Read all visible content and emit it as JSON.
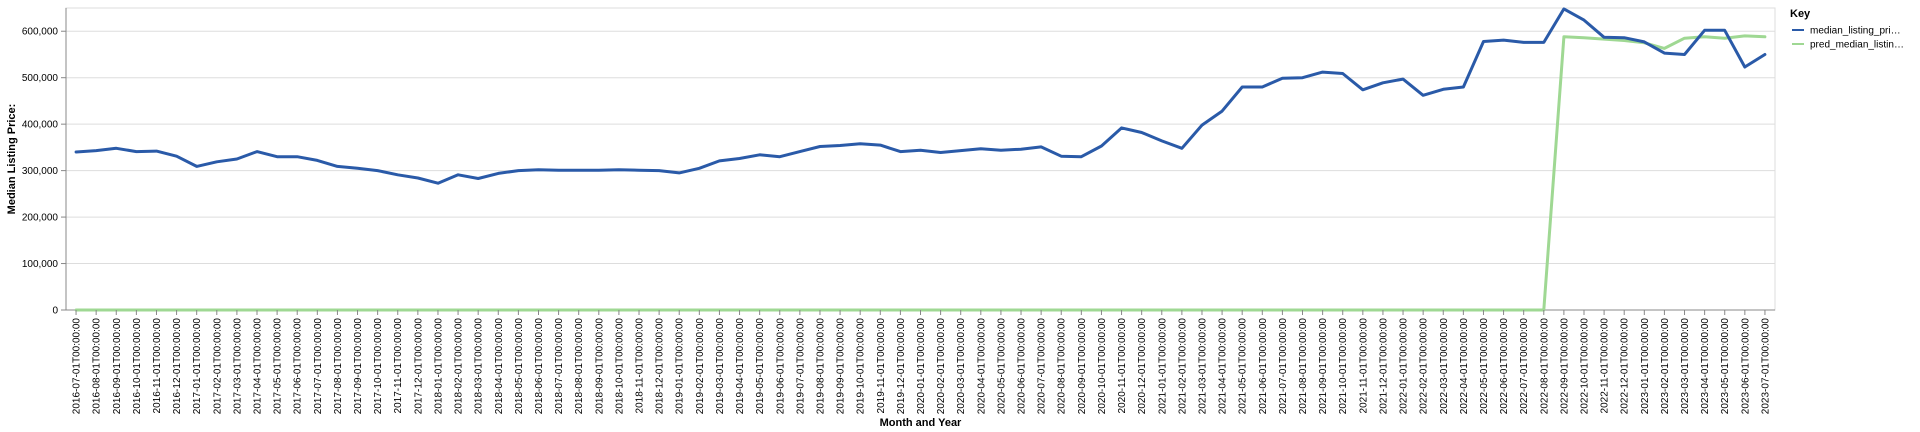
{
  "chart_data": {
    "type": "line",
    "xlabel": "Month and Year",
    "ylabel": "Median Listing Price:",
    "ylim": [
      0,
      650000
    ],
    "yticks": [
      0,
      100000,
      200000,
      300000,
      400000,
      500000,
      600000
    ],
    "ytick_labels": [
      "0",
      "100,000",
      "200,000",
      "300,000",
      "400,000",
      "500,000",
      "600,000"
    ],
    "grid": true,
    "legend": {
      "title": "Key",
      "position": "right",
      "entries": [
        "median_listing_pri…",
        "pred_median_listin…"
      ]
    },
    "x": [
      "2016-07-01T00:00:00",
      "2016-08-01T00:00:00",
      "2016-09-01T00:00:00",
      "2016-10-01T00:00:00",
      "2016-11-01T00:00:00",
      "2016-12-01T00:00:00",
      "2017-01-01T00:00:00",
      "2017-02-01T00:00:00",
      "2017-03-01T00:00:00",
      "2017-04-01T00:00:00",
      "2017-05-01T00:00:00",
      "2017-06-01T00:00:00",
      "2017-07-01T00:00:00",
      "2017-08-01T00:00:00",
      "2017-09-01T00:00:00",
      "2017-10-01T00:00:00",
      "2017-11-01T00:00:00",
      "2017-12-01T00:00:00",
      "2018-01-01T00:00:00",
      "2018-02-01T00:00:00",
      "2018-03-01T00:00:00",
      "2018-04-01T00:00:00",
      "2018-05-01T00:00:00",
      "2018-06-01T00:00:00",
      "2018-07-01T00:00:00",
      "2018-08-01T00:00:00",
      "2018-09-01T00:00:00",
      "2018-10-01T00:00:00",
      "2018-11-01T00:00:00",
      "2018-12-01T00:00:00",
      "2019-01-01T00:00:00",
      "2019-02-01T00:00:00",
      "2019-03-01T00:00:00",
      "2019-04-01T00:00:00",
      "2019-05-01T00:00:00",
      "2019-06-01T00:00:00",
      "2019-07-01T00:00:00",
      "2019-08-01T00:00:00",
      "2019-09-01T00:00:00",
      "2019-10-01T00:00:00",
      "2019-11-01T00:00:00",
      "2019-12-01T00:00:00",
      "2020-01-01T00:00:00",
      "2020-02-01T00:00:00",
      "2020-03-01T00:00:00",
      "2020-04-01T00:00:00",
      "2020-05-01T00:00:00",
      "2020-06-01T00:00:00",
      "2020-07-01T00:00:00",
      "2020-08-01T00:00:00",
      "2020-09-01T00:00:00",
      "2020-10-01T00:00:00",
      "2020-11-01T00:00:00",
      "2020-12-01T00:00:00",
      "2021-01-01T00:00:00",
      "2021-02-01T00:00:00",
      "2021-03-01T00:00:00",
      "2021-04-01T00:00:00",
      "2021-05-01T00:00:00",
      "2021-06-01T00:00:00",
      "2021-07-01T00:00:00",
      "2021-08-01T00:00:00",
      "2021-09-01T00:00:00",
      "2021-10-01T00:00:00",
      "2021-11-01T00:00:00",
      "2021-12-01T00:00:00",
      "2022-01-01T00:00:00",
      "2022-02-01T00:00:00",
      "2022-03-01T00:00:00",
      "2022-04-01T00:00:00",
      "2022-05-01T00:00:00",
      "2022-06-01T00:00:00",
      "2022-07-01T00:00:00",
      "2022-08-01T00:00:00",
      "2022-09-01T00:00:00",
      "2022-10-01T00:00:00",
      "2022-11-01T00:00:00",
      "2022-12-01T00:00:00",
      "2023-01-01T00:00:00",
      "2023-02-01T00:00:00",
      "2023-03-01T00:00:00",
      "2023-04-01T00:00:00",
      "2023-05-01T00:00:00",
      "2023-06-01T00:00:00",
      "2023-07-01T00:00:00"
    ],
    "series": [
      {
        "name": "median_listing_pri…",
        "color": "#2a5aa8",
        "values": [
          340000,
          343000,
          348000,
          341000,
          342000,
          331000,
          309000,
          319000,
          325000,
          341000,
          330000,
          330000,
          322000,
          309000,
          305000,
          300000,
          291000,
          284000,
          273000,
          291000,
          283000,
          294000,
          300000,
          302000,
          301000,
          301000,
          301000,
          302000,
          301000,
          300000,
          295000,
          305000,
          321000,
          326000,
          334000,
          330000,
          341000,
          352000,
          354000,
          358000,
          355000,
          341000,
          344000,
          339000,
          343000,
          347000,
          344000,
          346000,
          351000,
          331000,
          330000,
          353000,
          392000,
          382000,
          364000,
          348000,
          398000,
          428000,
          480000,
          480000,
          499000,
          500000,
          512000,
          509000,
          474000,
          489000,
          497000,
          462000,
          475000,
          480000,
          578000,
          581000,
          576000,
          576000,
          648000,
          624000,
          587000,
          586000,
          577000,
          553000,
          550000,
          602000,
          602000,
          523000,
          550000
        ]
      },
      {
        "name": "pred_median_listin…",
        "color": "#9fd893",
        "values": [
          0,
          0,
          0,
          0,
          0,
          0,
          0,
          0,
          0,
          0,
          0,
          0,
          0,
          0,
          0,
          0,
          0,
          0,
          0,
          0,
          0,
          0,
          0,
          0,
          0,
          0,
          0,
          0,
          0,
          0,
          0,
          0,
          0,
          0,
          0,
          0,
          0,
          0,
          0,
          0,
          0,
          0,
          0,
          0,
          0,
          0,
          0,
          0,
          0,
          0,
          0,
          0,
          0,
          0,
          0,
          0,
          0,
          0,
          0,
          0,
          0,
          0,
          0,
          0,
          0,
          0,
          0,
          0,
          0,
          0,
          0,
          0,
          0,
          0,
          588000,
          586000,
          583000,
          580000,
          575000,
          563000,
          585000,
          588000,
          585000,
          590000,
          588000
        ]
      }
    ]
  }
}
